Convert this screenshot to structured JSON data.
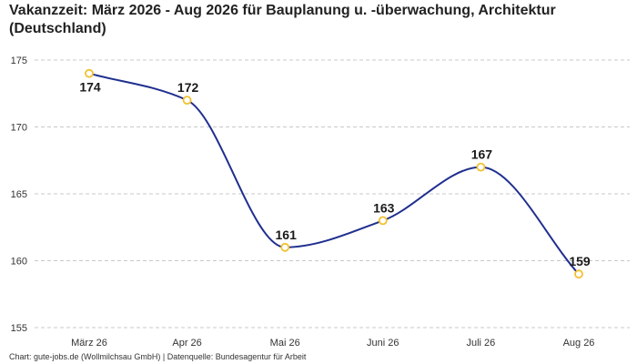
{
  "title": "Vakanzzeit: März 2026 - Aug 2026 für Bauplanung u. -überwachung, Architektur (Deutschland)",
  "footer": "Chart: gute-jobs.de (Wollmilchsau GmbH) | Datenquelle: Bundesagentur für Arbeit",
  "colors": {
    "line": "#1f2f8f",
    "marker_stroke": "#f2c12e",
    "marker_fill": "#ffffff",
    "grid": "#c8c8c8"
  },
  "chart_data": {
    "type": "line",
    "categories": [
      "März 26",
      "Apr 26",
      "Mai 26",
      "Juni 26",
      "Juli 26",
      "Aug 26"
    ],
    "series": [
      {
        "values": [
          174,
          172,
          161,
          163,
          167,
          159
        ]
      }
    ],
    "data_labels": [
      "174",
      "172",
      "161",
      "163",
      "167",
      "159"
    ],
    "y_ticks": [
      155,
      160,
      165,
      170,
      175
    ],
    "ylim": [
      155,
      175
    ],
    "grid": "horizontal-dashed",
    "smooth": true,
    "legend": "none"
  }
}
